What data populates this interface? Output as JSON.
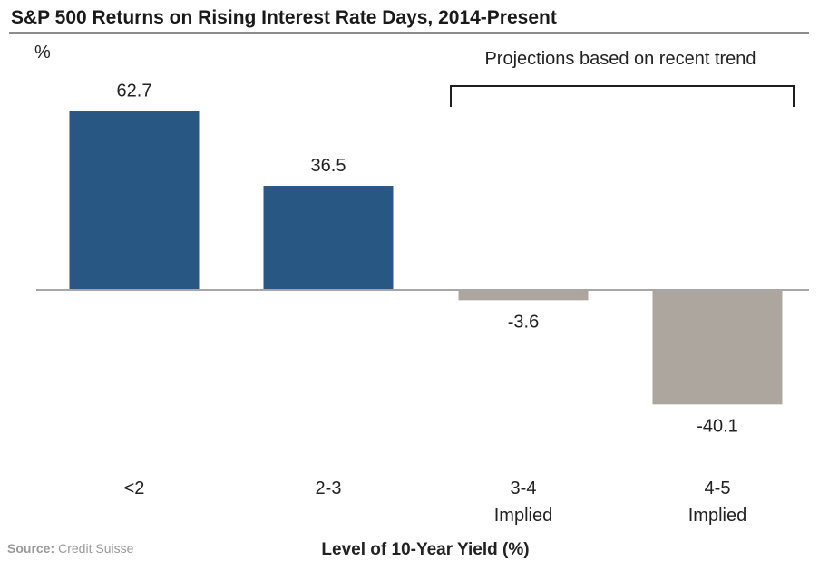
{
  "chart_data": {
    "type": "bar",
    "title": "S&P 500 Returns on Rising Interest Rate Days, 2014-Present",
    "ylabel": "%",
    "xlabel": "Level of 10-Year Yield (%)",
    "categories": [
      {
        "line1": "<2",
        "line2": ""
      },
      {
        "line1": "2-3",
        "line2": ""
      },
      {
        "line1": "3-4",
        "line2": "Implied"
      },
      {
        "line1": "4-5",
        "line2": "Implied"
      }
    ],
    "values": [
      62.7,
      36.5,
      -3.6,
      -40.1
    ],
    "value_labels": [
      "62.7",
      "36.5",
      "-3.6",
      "-40.1"
    ],
    "projected": [
      false,
      false,
      true,
      true
    ],
    "annotation": "Projections based on recent trend",
    "ylim": [
      -50,
      70
    ],
    "grid": false,
    "legend": "none"
  },
  "colors": {
    "actual": "#285783",
    "projected": "#ada69f",
    "zero_line": "#a7a7a7",
    "title_rule": "#8c8c8c",
    "bracket": "#1f1f1f"
  },
  "source": {
    "key": "Source:",
    "value": "Credit Suisse"
  }
}
